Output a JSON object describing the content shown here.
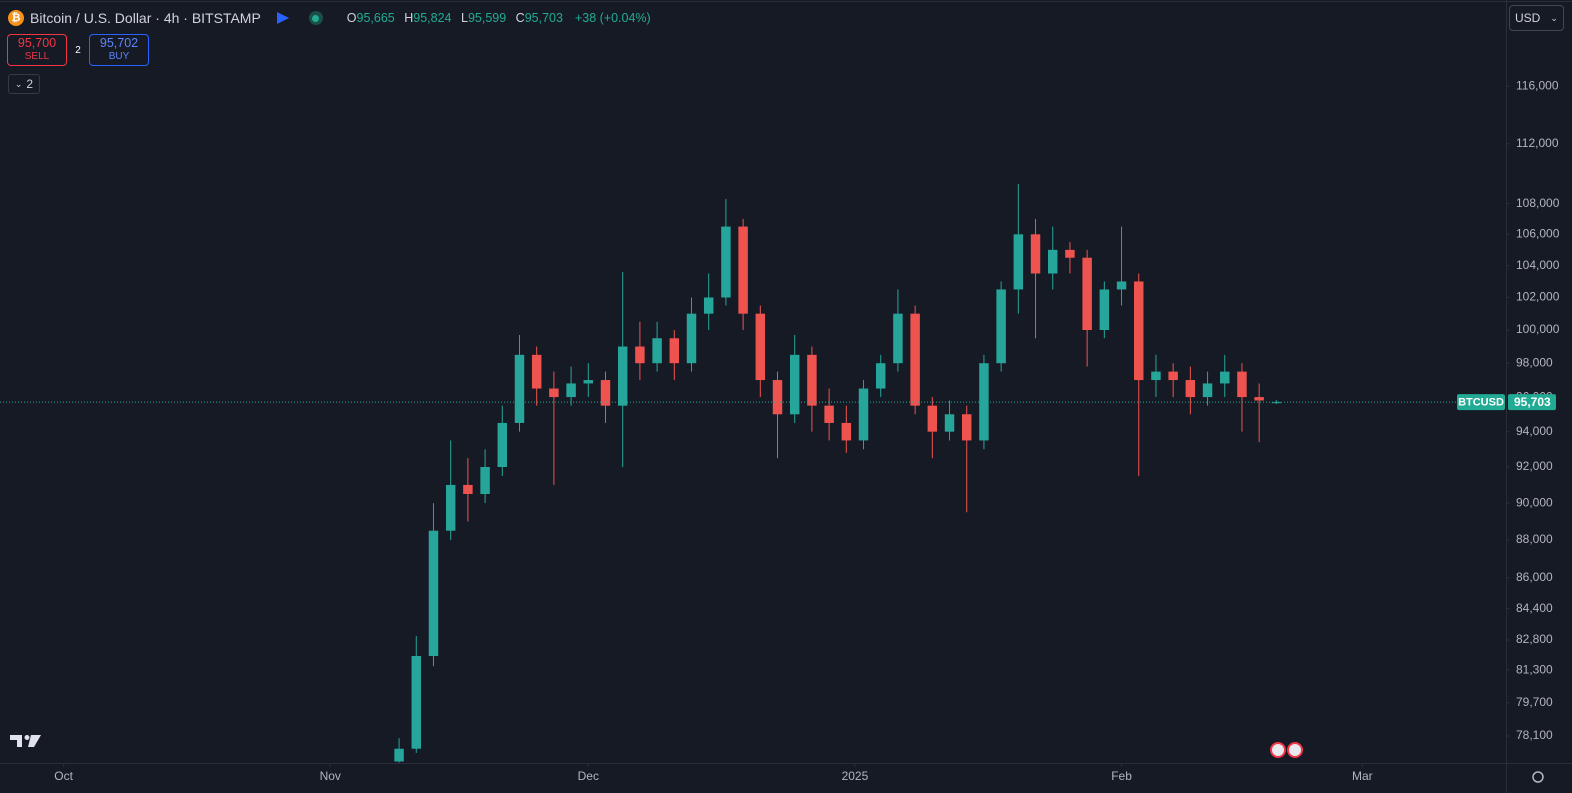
{
  "header": {
    "title": "Bitcoin / U.S. Dollar · 4h · BITSTAMP",
    "ohlc": [
      {
        "key": "O",
        "text": "95,665"
      },
      {
        "key": "H",
        "text": "95,824"
      },
      {
        "key": "L",
        "text": "95,599"
      },
      {
        "key": "C",
        "text": "95,703"
      }
    ],
    "change": "+38 (+0.04%)",
    "sell": {
      "price": "95,700",
      "label": "SELL"
    },
    "spread": "2",
    "buy": {
      "price": "95,702",
      "label": "BUY"
    },
    "indicators": "2",
    "currency": "USD"
  },
  "chart_data": {
    "type": "candlestick",
    "x": [
      39,
      41,
      43,
      45,
      47,
      49,
      51,
      53,
      55,
      57,
      59,
      61,
      63,
      65,
      67,
      69,
      71,
      73,
      75,
      77,
      79,
      81,
      83,
      85,
      87,
      89,
      91,
      93,
      95,
      97,
      99,
      101,
      103,
      105,
      107,
      109,
      111,
      113,
      115,
      117,
      119,
      121,
      123,
      125,
      127,
      129,
      131,
      133,
      135,
      137,
      139,
      141
    ],
    "open": [
      76900,
      77500,
      82000,
      88500,
      91000,
      90500,
      92000,
      94500,
      98500,
      96500,
      96000,
      96800,
      97000,
      95500,
      99000,
      98000,
      99500,
      98000,
      101000,
      102000,
      106500,
      101000,
      97000,
      95000,
      98500,
      95500,
      94500,
      93500,
      96500,
      98000,
      101000,
      95500,
      94000,
      95000,
      93500,
      98000,
      102500,
      106000,
      103500,
      105000,
      104500,
      100000,
      102500,
      103000,
      97000,
      97500,
      97000,
      96000,
      96800,
      97500,
      96000,
      95665
    ],
    "high": [
      78000,
      83000,
      90000,
      93500,
      92500,
      93000,
      95500,
      99700,
      99000,
      97500,
      97800,
      98000,
      97500,
      103600,
      100500,
      100500,
      100000,
      102000,
      103500,
      108300,
      107000,
      101500,
      97500,
      99700,
      99000,
      96500,
      95500,
      97000,
      98500,
      102500,
      101500,
      96000,
      95800,
      95500,
      98500,
      103000,
      109300,
      107000,
      106500,
      105500,
      105000,
      103000,
      106500,
      103500,
      98500,
      98000,
      97800,
      97500,
      98500,
      98000,
      96800,
      95824
    ],
    "low": [
      76850,
      77300,
      81500,
      88000,
      89000,
      90000,
      91500,
      94000,
      95500,
      91000,
      95500,
      96000,
      94500,
      92000,
      97000,
      97500,
      97000,
      97500,
      100000,
      101500,
      100000,
      96000,
      92500,
      94500,
      94000,
      93500,
      92800,
      93000,
      96000,
      97500,
      95000,
      92500,
      93500,
      89500,
      93000,
      97500,
      101000,
      99500,
      102500,
      103500,
      97800,
      99500,
      101500,
      91500,
      96000,
      96000,
      95000,
      95500,
      96000,
      94000,
      93400,
      95599
    ],
    "close": [
      77500,
      82000,
      88500,
      91000,
      90500,
      92000,
      94500,
      98500,
      96500,
      96000,
      96800,
      97000,
      95500,
      99000,
      98000,
      99500,
      98000,
      101000,
      102000,
      106500,
      101000,
      97000,
      95000,
      98500,
      95500,
      94500,
      93500,
      96500,
      98000,
      101000,
      95500,
      94000,
      95000,
      93500,
      98000,
      102500,
      106000,
      103500,
      105000,
      104500,
      100000,
      102500,
      103000,
      97000,
      97500,
      97000,
      96000,
      96800,
      97500,
      96000,
      95800,
      95703
    ],
    "up_color": "#26a69a",
    "down_color": "#ef5350",
    "xlim": [
      -7.4,
      167.7
    ],
    "xticks": [
      {
        "value": 0,
        "label": "Oct"
      },
      {
        "value": 31,
        "label": "Nov"
      },
      {
        "value": 61,
        "label": "Dec"
      },
      {
        "value": 92,
        "label": "2025"
      },
      {
        "value": 123,
        "label": "Feb"
      },
      {
        "value": 151,
        "label": "Mar"
      }
    ],
    "ylim": [
      76830,
      122250
    ],
    "log_scale": true,
    "yticks": [
      {
        "value": 78100,
        "label": "78,100"
      },
      {
        "value": 79700,
        "label": "79,700"
      },
      {
        "value": 81300,
        "label": "81,300"
      },
      {
        "value": 82800,
        "label": "82,800"
      },
      {
        "value": 84400,
        "label": "84,400"
      },
      {
        "value": 86000,
        "label": "86,000"
      },
      {
        "value": 88000,
        "label": "88,000"
      },
      {
        "value": 90000,
        "label": "90,000"
      },
      {
        "value": 92000,
        "label": "92,000"
      },
      {
        "value": 94000,
        "label": "94,000"
      },
      {
        "value": 96000,
        "label": "96,000"
      },
      {
        "value": 98000,
        "label": "98,000"
      },
      {
        "value": 100000,
        "label": "100,000"
      },
      {
        "value": 102000,
        "label": "102,000"
      },
      {
        "value": 104000,
        "label": "104,000"
      },
      {
        "value": 106000,
        "label": "106,000"
      },
      {
        "value": 108000,
        "label": "108,000"
      },
      {
        "value": 112000,
        "label": "112,000"
      },
      {
        "value": 116000,
        "label": "116,000"
      }
    ],
    "last_price": {
      "value": 95703,
      "label": "95,703"
    },
    "symbol_tag": "BTCUSD",
    "last_color": "#22ab94"
  }
}
